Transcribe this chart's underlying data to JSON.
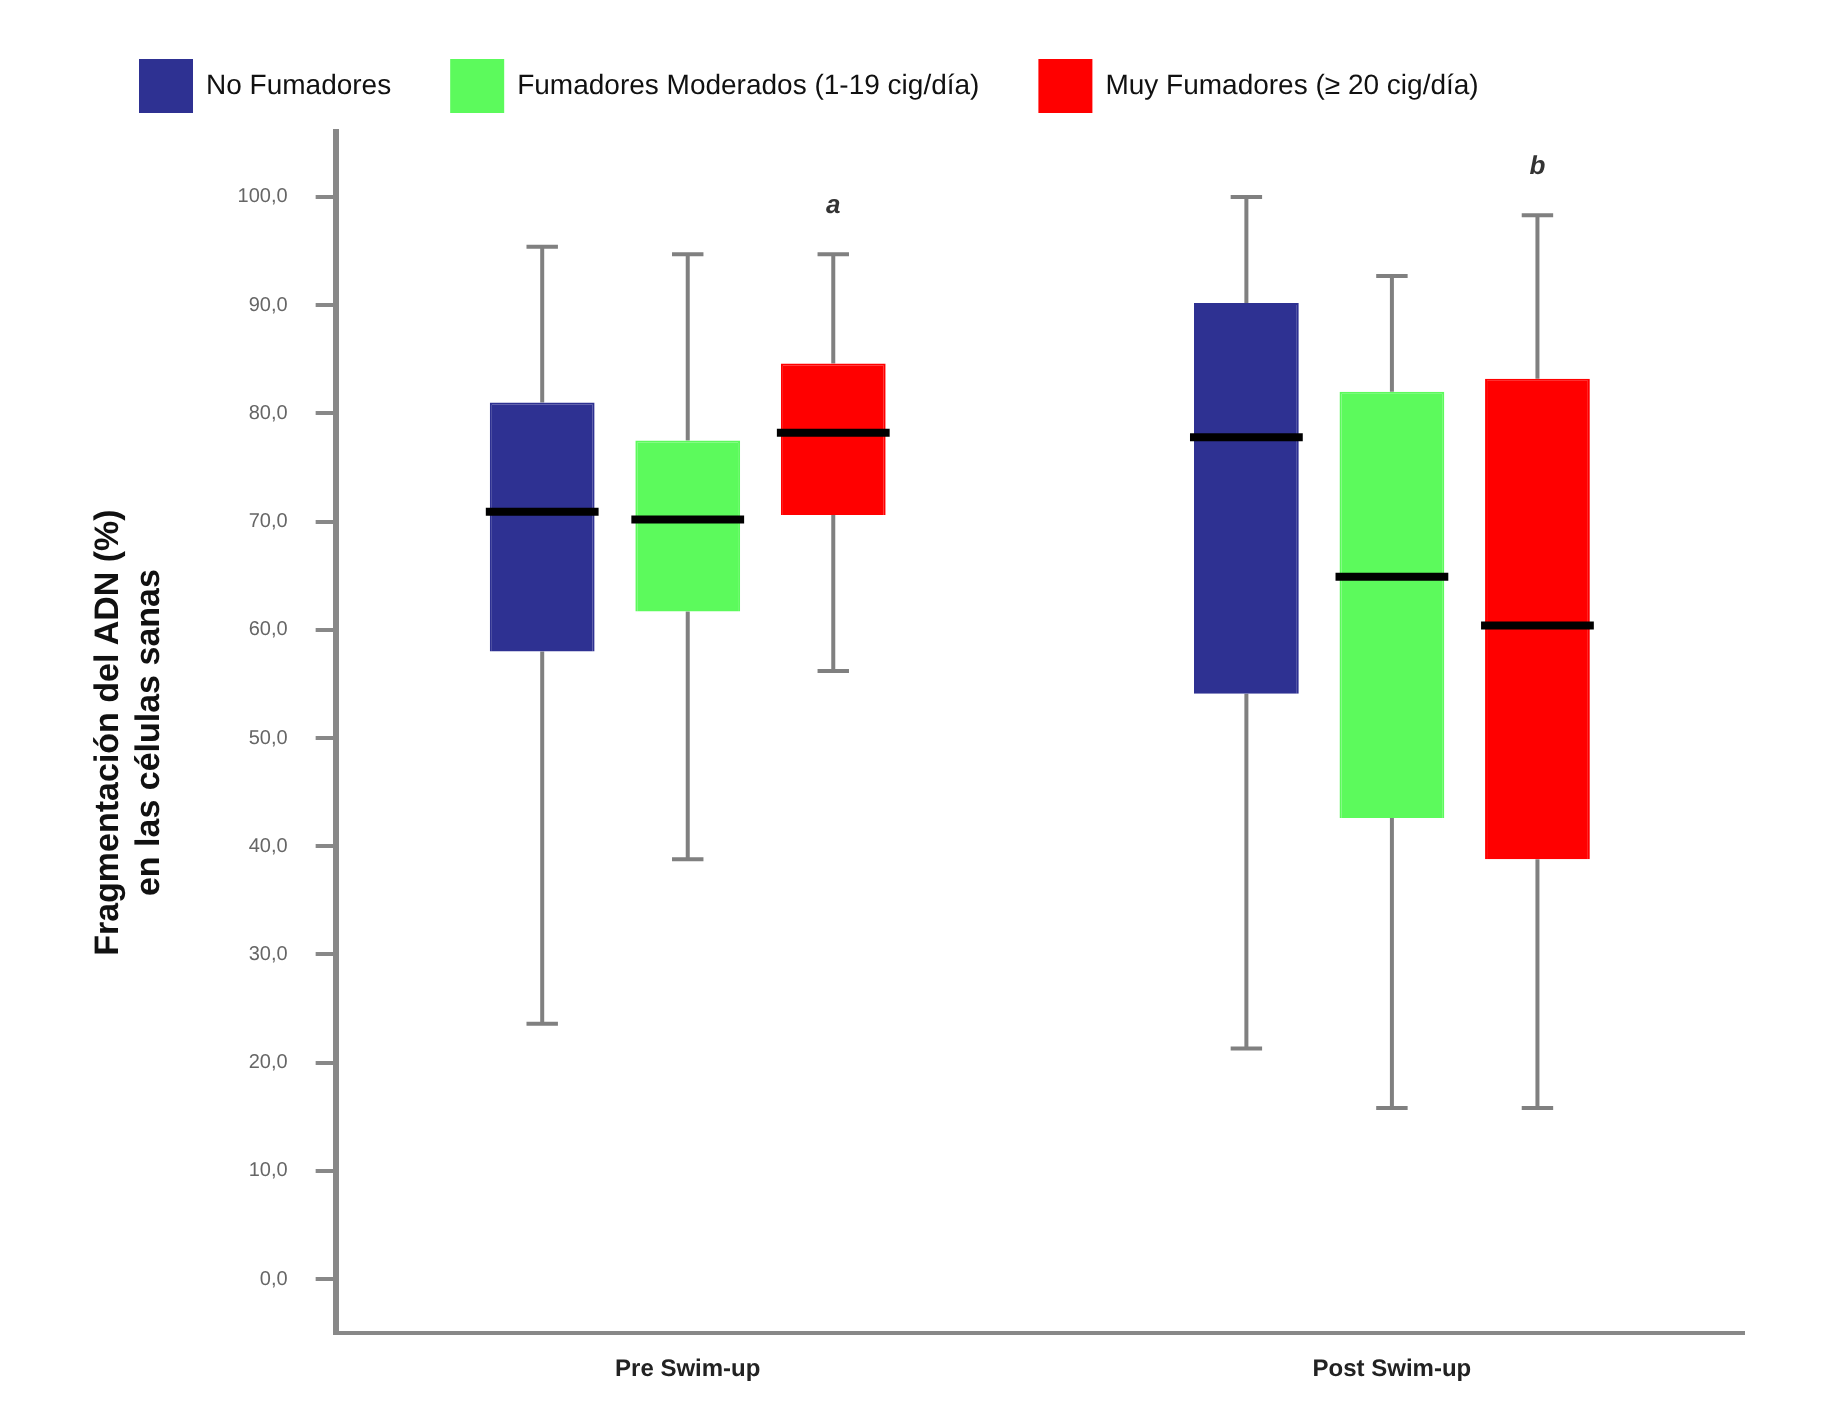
{
  "chart_data": {
    "type": "box",
    "ylabel": "Fragmentación del ADN (%)\nen las células sanas",
    "categories": [
      "Pre Swim-up",
      "Post Swim-up"
    ],
    "series": [
      {
        "name": "No Fumadores",
        "color": "#2e3192",
        "boxes": [
          {
            "low": 23.6,
            "q1": 58.0,
            "median": 70.9,
            "q3": 81.0,
            "high": 95.4
          },
          {
            "low": 21.3,
            "q1": 54.1,
            "median": 77.8,
            "q3": 90.2,
            "high": 100.0
          }
        ]
      },
      {
        "name": "Fumadores Moderados (1-19 cig/día)",
        "color": "#5cfa5c",
        "boxes": [
          {
            "low": 38.8,
            "q1": 61.7,
            "median": 70.2,
            "q3": 77.5,
            "high": 94.7
          },
          {
            "low": 15.8,
            "q1": 42.6,
            "median": 64.9,
            "q3": 82.0,
            "high": 92.7
          }
        ]
      },
      {
        "name": "Muy Fumadores (≥ 20 cig/día)",
        "color": "#ff0000",
        "boxes": [
          {
            "low": 56.2,
            "q1": 70.6,
            "median": 78.2,
            "q3": 84.6,
            "high": 94.7
          },
          {
            "low": 15.8,
            "q1": 38.8,
            "median": 60.4,
            "q3": 83.2,
            "high": 98.3
          }
        ]
      }
    ],
    "ylim": [
      -5,
      106
    ],
    "yticks": [
      {
        "value": 0,
        "label": "0,0"
      },
      {
        "value": 10,
        "label": "10,0"
      },
      {
        "value": 20,
        "label": "20,0"
      },
      {
        "value": 30,
        "label": "30,0"
      },
      {
        "value": 40,
        "label": "40,0"
      },
      {
        "value": 50,
        "label": "50,0"
      },
      {
        "value": 60,
        "label": "60,0"
      },
      {
        "value": 70,
        "label": "70,0"
      },
      {
        "value": 80,
        "label": "80,0"
      },
      {
        "value": 90,
        "label": "90,0"
      },
      {
        "value": 100,
        "label": "100,0"
      }
    ],
    "annotations": [
      "a",
      "b"
    ],
    "legend": "top left",
    "grid": false
  }
}
